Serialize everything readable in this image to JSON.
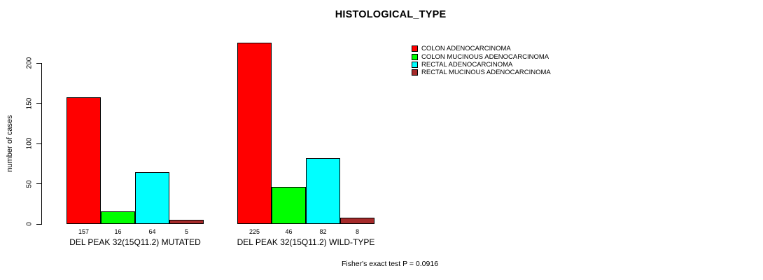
{
  "chart_data": {
    "type": "bar",
    "title": "HISTOLOGICAL_TYPE",
    "ylabel": "number of cases",
    "xlabel": "",
    "categories": [
      "DEL PEAK 32(15Q11.2) MUTATED",
      "DEL PEAK 32(15Q11.2) WILD-TYPE"
    ],
    "series": [
      {
        "name": "COLON ADENOCARCINOMA",
        "color": "#ff0000",
        "values": [
          157,
          225
        ]
      },
      {
        "name": "COLON MUCINOUS ADENOCARCINOMA",
        "color": "#00ff00",
        "values": [
          16,
          46
        ]
      },
      {
        "name": "RECTAL ADENOCARCINOMA",
        "color": "#00ffff",
        "values": [
          64,
          82
        ]
      },
      {
        "name": "RECTAL MUCINOUS ADENOCARCINOMA",
        "color": "#a52a2a",
        "values": [
          5,
          8
        ]
      }
    ],
    "yticks": [
      0,
      50,
      100,
      150,
      200
    ],
    "ylim": [
      0,
      230
    ],
    "grid": false,
    "legend_position": "top-right",
    "bar_border_color": "#000000",
    "annotation": "Fisher's exact test P = 0.0916"
  }
}
